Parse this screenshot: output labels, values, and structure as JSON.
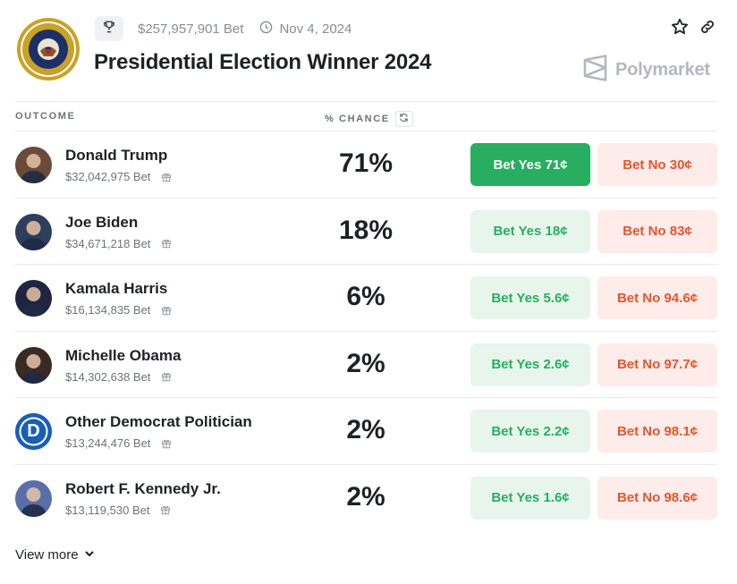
{
  "market": {
    "volume": "$257,957,901 Bet",
    "date": "Nov 4, 2024",
    "title": "Presidential Election Winner 2024",
    "brand": "Polymarket"
  },
  "columns": {
    "outcome": "OUTCOME",
    "chance": "% CHANCE"
  },
  "outcomes": [
    {
      "name": "Donald Trump",
      "bet": "$32,042,975 Bet",
      "chance": "71%",
      "yes": "Bet Yes 71¢",
      "no": "Bet No 30¢",
      "avatar_color": "#6b4a3a",
      "yes_active": true
    },
    {
      "name": "Joe Biden",
      "bet": "$34,671,218 Bet",
      "chance": "18%",
      "yes": "Bet Yes 18¢",
      "no": "Bet No 83¢",
      "avatar_color": "#2d3e5c"
    },
    {
      "name": "Kamala Harris",
      "bet": "$16,134,835 Bet",
      "chance": "6%",
      "yes": "Bet Yes 5.6¢",
      "no": "Bet No 94.6¢",
      "avatar_color": "#1f2540"
    },
    {
      "name": "Michelle Obama",
      "bet": "$14,302,638 Bet",
      "chance": "2%",
      "yes": "Bet Yes 2.6¢",
      "no": "Bet No 97.7¢",
      "avatar_color": "#3a2a24"
    },
    {
      "name": "Other Democrat Politician",
      "bet": "$13,244,476 Bet",
      "chance": "2%",
      "yes": "Bet Yes 2.2¢",
      "no": "Bet No 98.1¢",
      "avatar_color": "#1a5fb4",
      "avatar_letter": "D"
    },
    {
      "name": "Robert F. Kennedy Jr.",
      "bet": "$13,119,530 Bet",
      "chance": "2%",
      "yes": "Bet Yes 1.6¢",
      "no": "Bet No 98.6¢",
      "avatar_color": "#5a6fa8"
    }
  ],
  "view_more": "View more",
  "icons": {
    "seal": "presidential-seal-icon",
    "trophy": "trophy-icon",
    "clock": "clock-icon",
    "star": "star-icon",
    "link": "link-icon",
    "refresh": "refresh-icon",
    "gift": "gift-icon",
    "chevron": "chevron-down-icon"
  },
  "colors": {
    "yes_green": "#27ae60",
    "yes_bg": "#e8f5ec",
    "no_red": "#e8542c",
    "no_bg": "#fdecea"
  }
}
